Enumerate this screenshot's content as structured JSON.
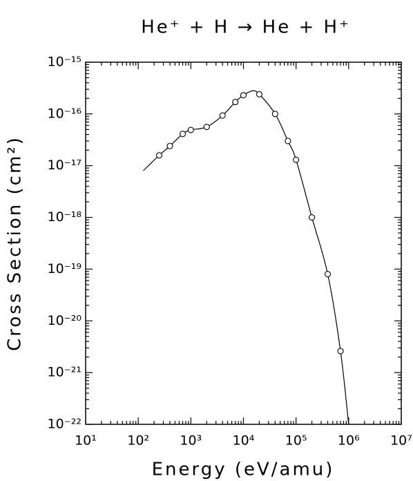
{
  "chart_data": {
    "type": "line",
    "title": "He⁺ + H → He + H⁺",
    "x_label": "Energy (eV/amu)",
    "y_label": "Cross Section (cm²)",
    "x_log": true,
    "y_log": true,
    "minor_ticks": true,
    "mirror_ticks": true,
    "xlim": [
      10,
      10000000
    ],
    "ylim": [
      1e-22,
      1e-15
    ],
    "xticks": [
      {
        "value": 10,
        "label": "10¹"
      },
      {
        "value": 100,
        "label": "10²"
      },
      {
        "value": 1000,
        "label": "10³"
      },
      {
        "value": 10000,
        "label": "10⁴"
      },
      {
        "value": 100000,
        "label": "10⁵"
      },
      {
        "value": 1000000,
        "label": "10⁶"
      },
      {
        "value": 10000000,
        "label": "10⁷"
      }
    ],
    "yticks": [
      {
        "value": 1e-22,
        "label": "10⁻²²"
      },
      {
        "value": 1e-21,
        "label": "10⁻²¹"
      },
      {
        "value": 1e-20,
        "label": "10⁻²⁰"
      },
      {
        "value": 1e-19,
        "label": "10⁻¹⁹"
      },
      {
        "value": 1e-18,
        "label": "10⁻¹⁸"
      },
      {
        "value": 1e-17,
        "label": "10⁻¹⁷"
      },
      {
        "value": 1e-16,
        "label": "10⁻¹⁶"
      },
      {
        "value": 1e-15,
        "label": "10⁻¹⁵"
      }
    ],
    "series": [
      {
        "type": "line",
        "color": "#000000",
        "x": [
          125,
          250,
          400,
          700,
          1000,
          2000,
          4000,
          7000,
          10000,
          15000,
          20000,
          40000,
          70000,
          100000,
          200000,
          400000,
          700000,
          1000000
        ],
        "values": [
          8e-18,
          1.58e-17,
          2.4e-17,
          4.1e-17,
          4.9e-17,
          5.6e-17,
          9.3e-17,
          1.7e-16,
          2.3e-16,
          2.8e-16,
          2.4e-16,
          1e-16,
          3e-17,
          1.3e-17,
          1e-18,
          8e-20,
          2.6e-21,
          1e-22
        ]
      },
      {
        "type": "scatter",
        "color": "#000000",
        "x": [
          250,
          400,
          700,
          1000,
          2000,
          4000,
          7000,
          10000,
          20000,
          40000,
          70000,
          100000,
          200000,
          400000,
          700000
        ],
        "values": [
          1.58e-17,
          2.4e-17,
          4.1e-17,
          4.9e-17,
          5.6e-17,
          9.3e-17,
          1.7e-16,
          2.3e-16,
          2.4e-16,
          1e-16,
          3e-17,
          1.3e-17,
          1e-18,
          8e-20,
          2.6e-21
        ]
      }
    ]
  }
}
